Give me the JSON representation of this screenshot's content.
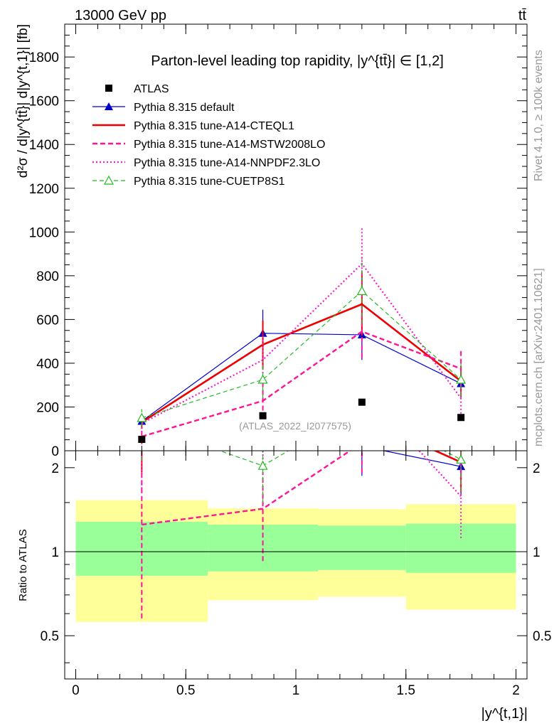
{
  "header": {
    "left": "13000 GeV pp",
    "right": "tt̄",
    "side_top": "Rivet 4.1.0, ≥ 100k events",
    "side_bottom": "mcplots.cern.ch [arXiv:2401.10621]"
  },
  "chart_data": {
    "type": "line",
    "title": "Parton-level leading top rapidity, |y^{tt̄}| ∈ [1,2]",
    "watermark": "(ATLAS_2022_I2077575)",
    "xlabel": "|y^{t,1}|",
    "ylabel": "d²σ / d|y^{tt̄}| d|y^{t,1}| [fb]",
    "ratio_ylabel": "Ratio to ATLAS",
    "x_ticks": [
      "0",
      "0.5",
      "1",
      "1.5",
      "2"
    ],
    "y_ticks": [
      "0",
      "200",
      "400",
      "600",
      "800",
      "1000",
      "1200",
      "1400",
      "1600",
      "1800"
    ],
    "ratio_ticks": [
      "0.5",
      "1",
      "2"
    ],
    "xlim": [
      -0.05,
      2.05
    ],
    "ylim": [
      0,
      1950
    ],
    "ratio_ylim": [
      0.35,
      2.3
    ],
    "x": [
      0.3,
      0.85,
      1.3,
      1.75
    ],
    "x_bins": [
      [
        0.0,
        0.6
      ],
      [
        0.6,
        1.1
      ],
      [
        1.1,
        1.5
      ],
      [
        1.5,
        2.0
      ]
    ],
    "data": {
      "name": "ATLAS",
      "values": [
        52,
        160,
        222,
        152
      ],
      "band_inner": [
        [
          0.82,
          1.28
        ],
        [
          0.85,
          1.25
        ],
        [
          0.86,
          1.24
        ],
        [
          0.84,
          1.26
        ]
      ],
      "band_outer": [
        [
          0.56,
          1.53
        ],
        [
          0.67,
          1.43
        ],
        [
          0.69,
          1.42
        ],
        [
          0.62,
          1.48
        ]
      ]
    },
    "series": [
      {
        "name": "Pythia 8.315 default",
        "color": "#0000cc",
        "style": "solid",
        "marker": "triangle-filled",
        "values": [
          135,
          537,
          530,
          307
        ],
        "errors": [
          30,
          108,
          115,
          65
        ]
      },
      {
        "name": "Pythia 8.315 tune-A14-CTEQL1",
        "color": "#ee0000",
        "style": "solid-thick",
        "marker": "none",
        "values": [
          130,
          485,
          670,
          318
        ],
        "errors": [
          30,
          110,
          145,
          70
        ]
      },
      {
        "name": "Pythia 8.315 tune-A14-MSTW2008LO",
        "color": "#ff1493",
        "style": "dashed",
        "marker": "none",
        "values": [
          65,
          228,
          545,
          375
        ],
        "errors": [
          35,
          80,
          120,
          85
        ]
      },
      {
        "name": "Pythia 8.315 tune-A14-NNPDF2.3LO",
        "color": "#ee22cc",
        "style": "dotted",
        "marker": "none",
        "values": [
          125,
          415,
          855,
          240
        ],
        "errors": [
          40,
          110,
          170,
          70
        ]
      },
      {
        "name": "Pythia 8.315 tune-CUETP8S1",
        "color": "#22bb22",
        "style": "dashed-thin",
        "marker": "triangle-open",
        "values": [
          150,
          325,
          730,
          325
        ],
        "errors": [
          40,
          85,
          150,
          75
        ]
      }
    ]
  }
}
